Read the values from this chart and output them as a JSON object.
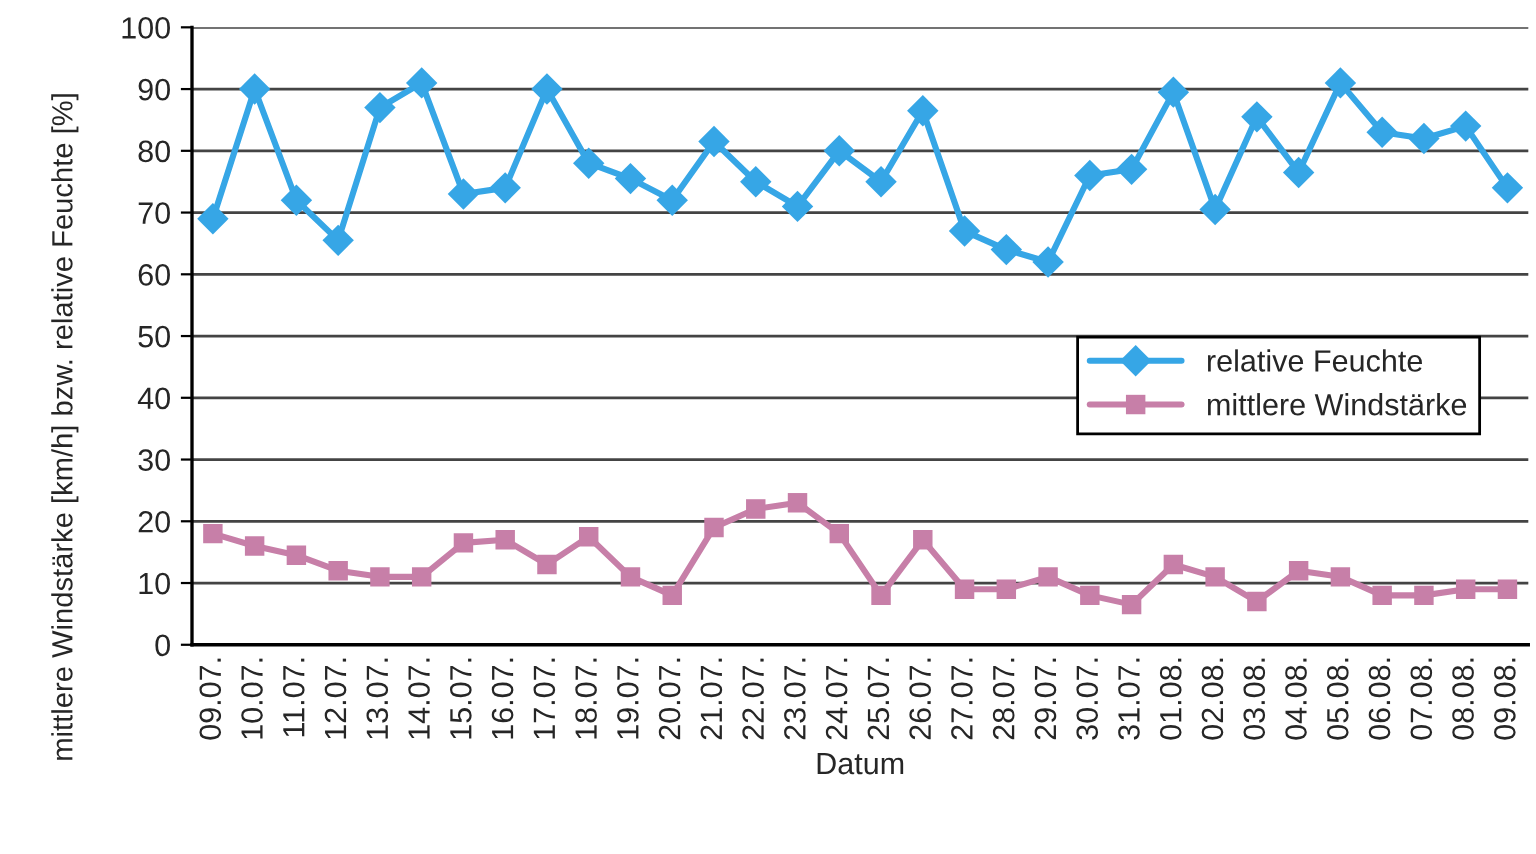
{
  "chart_data": {
    "type": "line",
    "xlabel": "Datum",
    "ylabel": "mittlere Windstärke [km/h] bzw. relative Feuchte [%]",
    "categories": [
      "09.07.",
      "10.07.",
      "11.07.",
      "12.07.",
      "13.07.",
      "14.07.",
      "15.07.",
      "16.07.",
      "17.07.",
      "18.07.",
      "19.07.",
      "20.07.",
      "21.07.",
      "22.07.",
      "23.07.",
      "24.07.",
      "25.07.",
      "26.07.",
      "27.07.",
      "28.07.",
      "29.07.",
      "30.07.",
      "31.07.",
      "01.08.",
      "02.08.",
      "03.08.",
      "04.08.",
      "05.08.",
      "06.08.",
      "07.08.",
      "08.08.",
      "09.08."
    ],
    "series": [
      {
        "name": "relative Feuchte",
        "color": "#36a6e6",
        "marker": "diamond",
        "values": [
          69,
          90,
          72,
          65.5,
          87,
          91,
          73,
          74,
          90,
          78,
          75.5,
          72,
          81.5,
          75,
          71,
          80,
          75,
          86.5,
          67,
          64,
          62,
          76,
          77,
          89.5,
          70.5,
          85.5,
          76.5,
          91,
          83,
          82,
          84,
          74
        ]
      },
      {
        "name": "mittlere Windstärke",
        "color": "#c77fa8",
        "marker": "square",
        "values": [
          18,
          16,
          14.5,
          12,
          11,
          11,
          16.5,
          17,
          13,
          17.5,
          11,
          8,
          19,
          22,
          23,
          18,
          8,
          17,
          9,
          9,
          11,
          8,
          6.5,
          13,
          11,
          7,
          12,
          11,
          8,
          8,
          9,
          9
        ]
      }
    ],
    "ylim": [
      0,
      100
    ],
    "yticks": [
      0,
      10,
      20,
      30,
      40,
      50,
      60,
      70,
      80,
      90,
      100
    ],
    "grid": "y",
    "legend": "right",
    "line_style": "solid"
  }
}
